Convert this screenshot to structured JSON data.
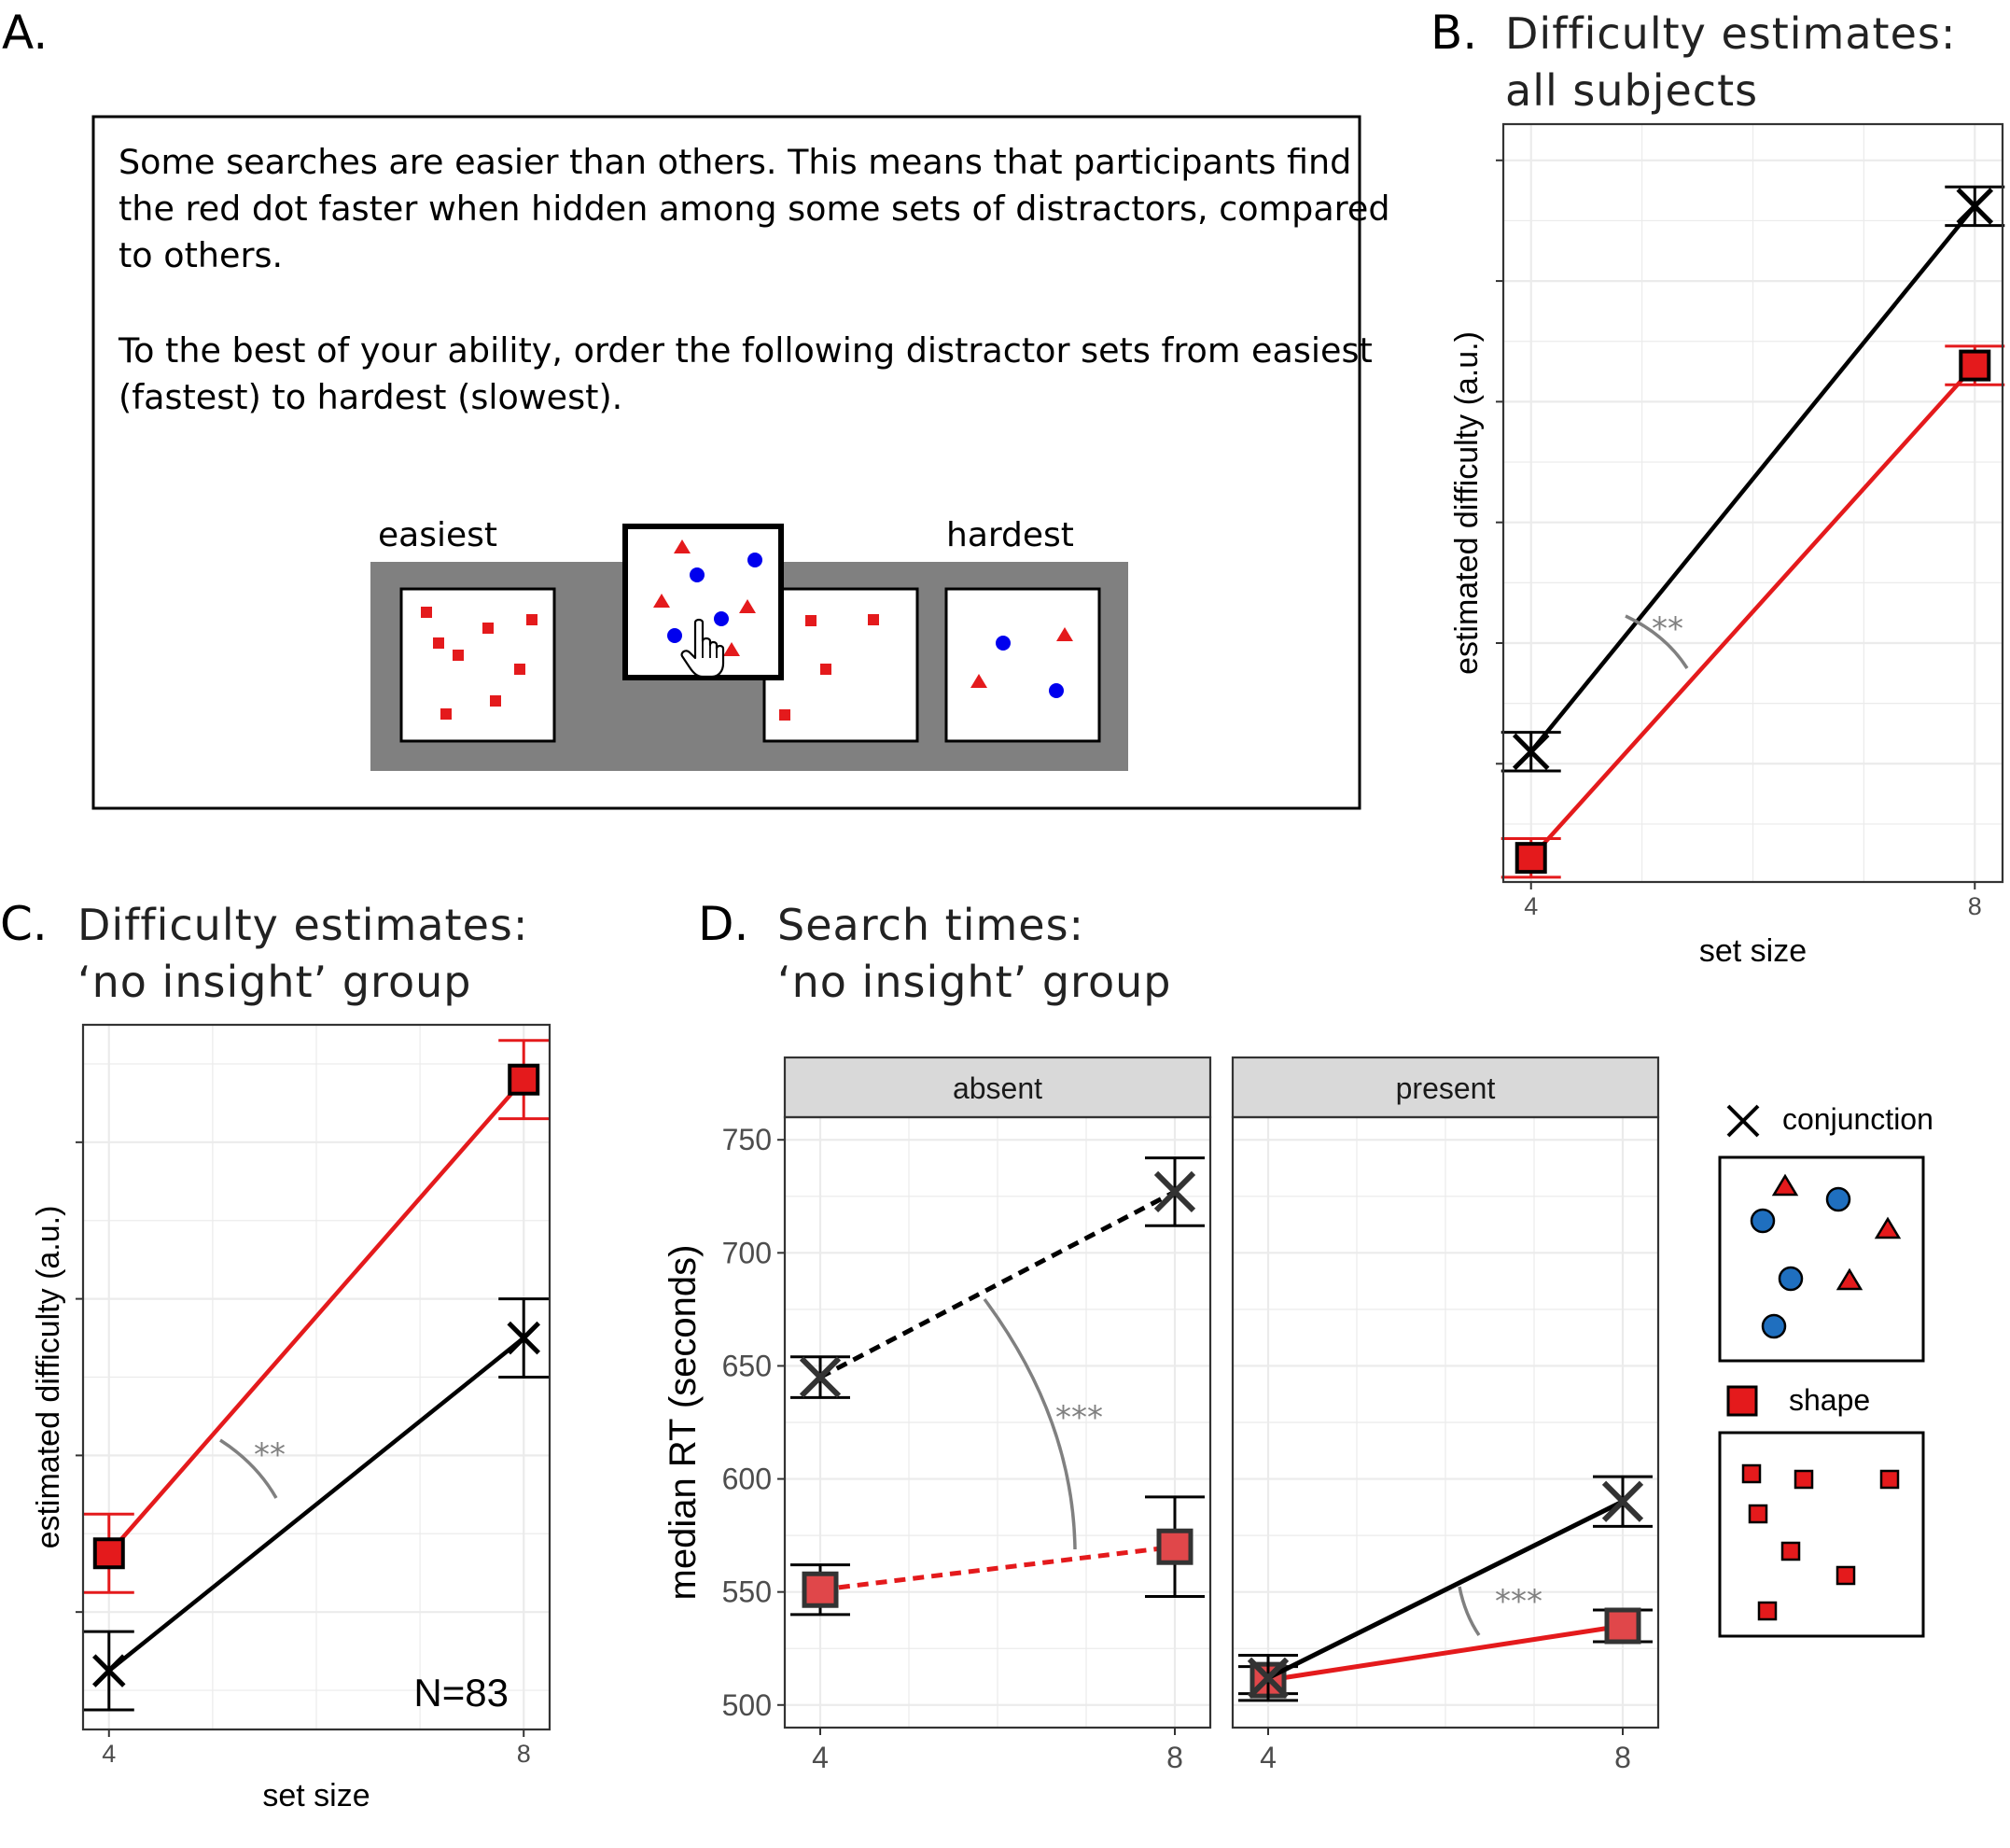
{
  "panels": {
    "a": {
      "label": "A.",
      "paragraph1": [
        "Some searches are easier than others. This means that participants find",
        "the red dot faster when hidden among some sets of distractors, compared",
        "to others."
      ],
      "paragraph2": [
        "To the best of your ability, order the following distractor sets from easiest",
        "(fastest) to hardest (slowest)."
      ],
      "easiest_label": "easiest",
      "hardest_label": "hardest"
    },
    "b": {
      "label": "B.",
      "title_line1": "Difficulty estimates:",
      "title_line2": "all subjects"
    },
    "c": {
      "label": "C.",
      "title_line1": "Difficulty estimates:",
      "title_line2": "‘no insight’ group"
    },
    "d": {
      "label": "D.",
      "title_line1": "Search times:",
      "title_line2": "‘no insight’ group"
    }
  },
  "legend": {
    "conjunction_label": "conjunction",
    "shape_label": "shape"
  },
  "colors": {
    "conjunction": "#000000",
    "shape": "#e41a1c",
    "blue": "#1f6fbf",
    "gray": "#808080"
  },
  "chart_data": [
    {
      "id": "B",
      "type": "line",
      "xlabel": "set size",
      "ylabel": "estimated difficulty (a.u.)",
      "x_ticks": [
        "4",
        "8"
      ],
      "ylim": [
        -0.62,
        0.95
      ],
      "series": [
        {
          "name": "conjunction",
          "x": [
            4,
            8
          ],
          "y": [
            -0.35,
            0.78
          ],
          "err": [
            0.04,
            0.04
          ]
        },
        {
          "name": "shape",
          "x": [
            4,
            8
          ],
          "y": [
            -0.57,
            0.45
          ],
          "err": [
            0.04,
            0.04
          ]
        }
      ],
      "annotation": "**"
    },
    {
      "id": "C",
      "type": "line",
      "xlabel": "set size",
      "ylabel": "estimated difficulty (a.u.)",
      "x_ticks": [
        "4",
        "8"
      ],
      "ylim": [
        -0.85,
        0.95
      ],
      "series": [
        {
          "name": "conjunction",
          "x": [
            4,
            8
          ],
          "y": [
            -0.7,
            0.15
          ],
          "err": [
            0.1,
            0.1
          ]
        },
        {
          "name": "shape",
          "x": [
            4,
            8
          ],
          "y": [
            -0.4,
            0.81
          ],
          "err": [
            0.1,
            0.1
          ]
        }
      ],
      "annotation": "**",
      "n_label": "N=83"
    },
    {
      "id": "D",
      "type": "line",
      "xlabel": "",
      "ylabel": "median RT (seconds)",
      "x_ticks": [
        "4",
        "8"
      ],
      "y_ticks": [
        500,
        550,
        600,
        650,
        700,
        750
      ],
      "ylim": [
        490,
        760
      ],
      "facets": [
        {
          "strip": "absent",
          "linestyle": "dashed",
          "series": [
            {
              "name": "conjunction",
              "x": [
                4,
                8
              ],
              "y": [
                645,
                727
              ],
              "err": [
                9,
                15
              ]
            },
            {
              "name": "shape",
              "x": [
                4,
                8
              ],
              "y": [
                551,
                570
              ],
              "err": [
                11,
                22
              ]
            }
          ],
          "annotation": "***"
        },
        {
          "strip": "present",
          "linestyle": "solid",
          "series": [
            {
              "name": "conjunction",
              "x": [
                4,
                8
              ],
              "y": [
                512,
                590
              ],
              "err": [
                10,
                11
              ]
            },
            {
              "name": "shape",
              "x": [
                4,
                8
              ],
              "y": [
                511,
                535
              ],
              "err": [
                6,
                7
              ]
            }
          ],
          "annotation": "***"
        }
      ]
    }
  ]
}
